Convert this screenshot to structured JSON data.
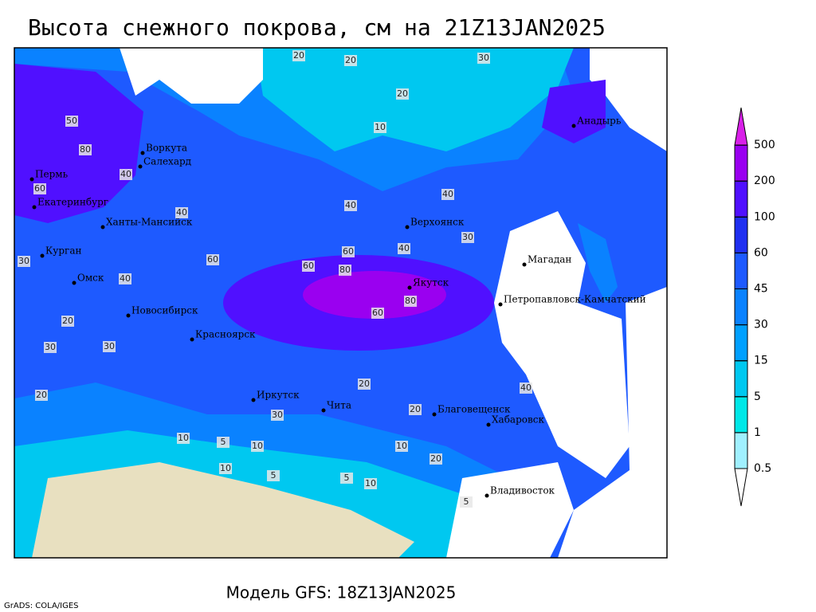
{
  "title": "Высота снежного покрова, см на 21Z13JAN2025",
  "subtitle": "Модель GFS: 18Z13JAN2025",
  "credit": "GrADS: COLA/IGES",
  "colorbar": {
    "levels": [
      0.5,
      1,
      5,
      15,
      30,
      45,
      60,
      100,
      200,
      500
    ],
    "colors": [
      "#ffffff",
      "#a0f0ff",
      "#00e8e8",
      "#00c8f0",
      "#00a0ff",
      "#0a82ff",
      "#1e5aff",
      "#2030f0",
      "#5010ff",
      "#9a00f0",
      "#d820e8"
    ]
  },
  "cities": [
    "Анадырь",
    "Воркута",
    "Салехард",
    "Пермь",
    "Екатеринбург",
    "Ханты-Мансийск",
    "Курган",
    "Омск",
    "Новосибирск",
    "Красноярск",
    "Иркутск",
    "Чита",
    "Верхоянск",
    "Якутск",
    "Магадан",
    "Петропавловск-Камчатский",
    "Благовещенск",
    "Хабаровск",
    "Владивосток"
  ],
  "contour_labels": [
    20,
    30,
    20,
    10,
    20,
    30,
    50,
    80,
    60,
    40,
    40,
    40,
    40,
    60,
    60,
    80,
    40,
    60,
    80,
    60,
    30,
    30,
    40,
    20,
    30,
    20,
    20,
    10,
    10,
    5,
    5,
    10,
    5,
    10,
    20,
    20,
    10,
    5,
    40,
    30
  ]
}
